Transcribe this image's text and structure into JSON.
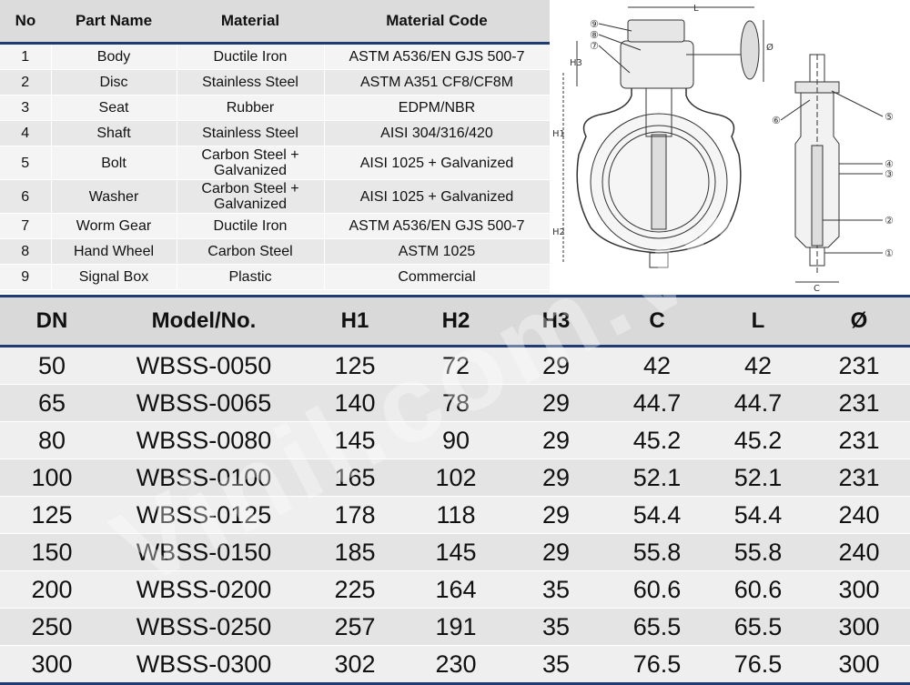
{
  "parts_table": {
    "headers": [
      "No",
      "Part Name",
      "Material",
      "Material Code"
    ],
    "rows": [
      {
        "no": "1",
        "name": "Body",
        "material": "Ductile Iron",
        "code": "ASTM A536/EN GJS 500-7"
      },
      {
        "no": "2",
        "name": "Disc",
        "material": "Stainless Steel",
        "code": "ASTM A351 CF8/CF8M"
      },
      {
        "no": "3",
        "name": "Seat",
        "material": "Rubber",
        "code": "EDPM/NBR"
      },
      {
        "no": "4",
        "name": "Shaft",
        "material": "Stainless Steel",
        "code": "AISI 304/316/420"
      },
      {
        "no": "5",
        "name": "Bolt",
        "material": "Carbon Steel + Galvanized",
        "code": "AISI 1025 + Galvanized"
      },
      {
        "no": "6",
        "name": "Washer",
        "material": "Carbon Steel + Galvanized",
        "code": "AISI 1025 + Galvanized"
      },
      {
        "no": "7",
        "name": "Worm Gear",
        "material": "Ductile Iron",
        "code": "ASTM A536/EN GJS 500-7"
      },
      {
        "no": "8",
        "name": "Hand Wheel",
        "material": "Carbon Steel",
        "code": "ASTM 1025"
      },
      {
        "no": "9",
        "name": "Signal Box",
        "material": "Plastic",
        "code": "Commercial"
      }
    ]
  },
  "drawing": {
    "labels": {
      "l": "L",
      "h1": "H1",
      "h2": "H2",
      "h3": "H3",
      "c": "C",
      "dia": "Ø"
    },
    "callouts": [
      "①",
      "②",
      "③",
      "④",
      "⑤",
      "⑥",
      "⑦",
      "⑧",
      "⑨"
    ]
  },
  "model_table": {
    "headers": [
      "DN",
      "Model/No.",
      "H1",
      "H2",
      "H3",
      "C",
      "L",
      "Ø"
    ],
    "rows": [
      [
        "50",
        "WBSS-0050",
        "125",
        "72",
        "29",
        "42",
        "42",
        "231"
      ],
      [
        "65",
        "WBSS-0065",
        "140",
        "78",
        "29",
        "44.7",
        "44.7",
        "231"
      ],
      [
        "80",
        "WBSS-0080",
        "145",
        "90",
        "29",
        "45.2",
        "45.2",
        "231"
      ],
      [
        "100",
        "WBSS-0100",
        "165",
        "102",
        "29",
        "52.1",
        "52.1",
        "231"
      ],
      [
        "125",
        "WBSS-0125",
        "178",
        "118",
        "29",
        "54.4",
        "54.4",
        "240"
      ],
      [
        "150",
        "WBSS-0150",
        "185",
        "145",
        "29",
        "55.8",
        "55.8",
        "240"
      ],
      [
        "200",
        "WBSS-0200",
        "225",
        "164",
        "35",
        "60.6",
        "60.6",
        "300"
      ],
      [
        "250",
        "WBSS-0250",
        "257",
        "191",
        "35",
        "65.5",
        "65.5",
        "300"
      ],
      [
        "300",
        "WBSS-0300",
        "302",
        "230",
        "35",
        "76.5",
        "76.5",
        "300"
      ]
    ]
  },
  "watermark": "Vinil.com.vn",
  "colors": {
    "accent": "#1e3c72",
    "header_bg": "#d9d9d9"
  }
}
